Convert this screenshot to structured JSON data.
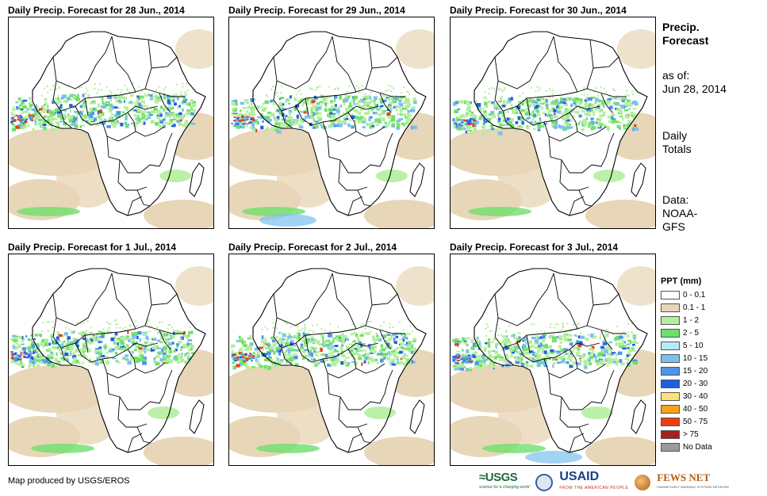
{
  "panels": [
    {
      "title": "Daily Precip. Forecast for 28 Jun., 2014"
    },
    {
      "title": "Daily Precip. Forecast for 29 Jun., 2014"
    },
    {
      "title": "Daily Precip. Forecast for 30 Jun., 2014"
    },
    {
      "title": "Daily Precip. Forecast for 1 Jul., 2014"
    },
    {
      "title": "Daily Precip. Forecast for 2 Jul., 2014"
    },
    {
      "title": "Daily Precip. Forecast for 3 Jul., 2014"
    }
  ],
  "sidebar": {
    "title_line1": "Precip.",
    "title_line2": "Forecast",
    "asof_line1": "as of:",
    "asof_line2": "Jun 28, 2014",
    "totals_line1": "Daily",
    "totals_line2": "Totals",
    "data_line1": "Data:",
    "data_line2": "NOAA-",
    "data_line3": "GFS"
  },
  "legend": {
    "title": "PPT (mm)",
    "items": [
      {
        "label": "0 - 0.1",
        "color": "#ffffff"
      },
      {
        "label": "0.1 - 1",
        "color": "#e8d6b8"
      },
      {
        "label": "1 - 2",
        "color": "#b4ee9e"
      },
      {
        "label": "2 - 5",
        "color": "#6ee06c"
      },
      {
        "label": "5 - 10",
        "color": "#b4ecf4"
      },
      {
        "label": "10 - 15",
        "color": "#7cc0ee"
      },
      {
        "label": "15 - 20",
        "color": "#4c96e6"
      },
      {
        "label": "20 - 30",
        "color": "#1e5ee0"
      },
      {
        "label": "30 - 40",
        "color": "#fce27a"
      },
      {
        "label": "40 - 50",
        "color": "#f8a21e"
      },
      {
        "label": "50 - 75",
        "color": "#ee3c12"
      },
      {
        "label": "> 75",
        "color": "#a8201e"
      },
      {
        "label": "No Data",
        "color": "#9a9a9a"
      }
    ]
  },
  "credit": "Map produced by USGS/EROS",
  "logos": {
    "usgs": "≈USGS",
    "usgs_tagline": "science for a changing world",
    "usaid": "USAID",
    "usaid_tagline": "FROM THE AMERICAN PEOPLE",
    "fews": "FEWS NET",
    "fews_tagline": "FAMINE EARLY WARNING SYSTEMS NETWORK"
  }
}
